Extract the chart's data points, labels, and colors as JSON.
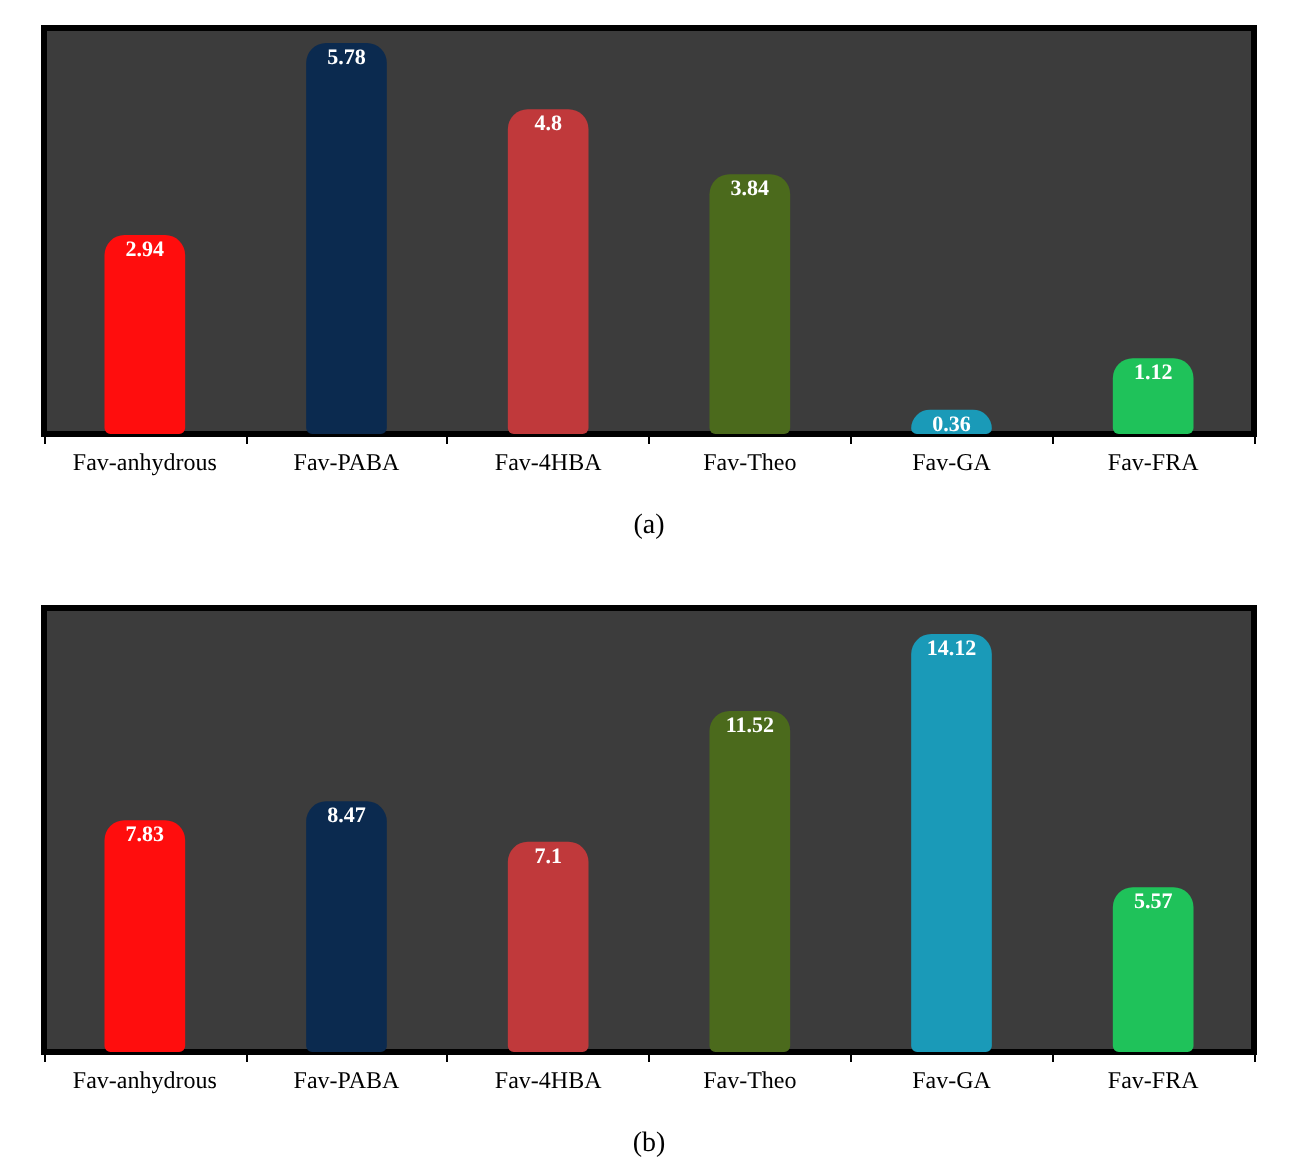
{
  "chart_data": [
    {
      "type": "bar",
      "title": "(a)",
      "categories": [
        "Fav-anhydrous",
        "Fav-PABA",
        "Fav-4HBA",
        "Fav-Theo",
        "Fav-GA",
        "Fav-FRA"
      ],
      "values": [
        2.94,
        5.78,
        4.8,
        3.84,
        0.36,
        1.12
      ],
      "colors": [
        "#ff0d0d",
        "#0b2a4f",
        "#c0393b",
        "#4b6a1c",
        "#1a9ab8",
        "#1fc25a"
      ],
      "data_labels": true
    },
    {
      "type": "bar",
      "title": "(b)",
      "categories": [
        "Fav-anhydrous",
        "Fav-PABA",
        "Fav-4HBA",
        "Fav-Theo",
        "Fav-GA",
        "Fav-FRA"
      ],
      "values": [
        7.83,
        8.47,
        7.1,
        11.52,
        14.12,
        5.57
      ],
      "colors": [
        "#ff0d0d",
        "#0b2a4f",
        "#c0393b",
        "#4b6a1c",
        "#1a9ab8",
        "#1fc25a"
      ],
      "data_labels": true
    }
  ]
}
